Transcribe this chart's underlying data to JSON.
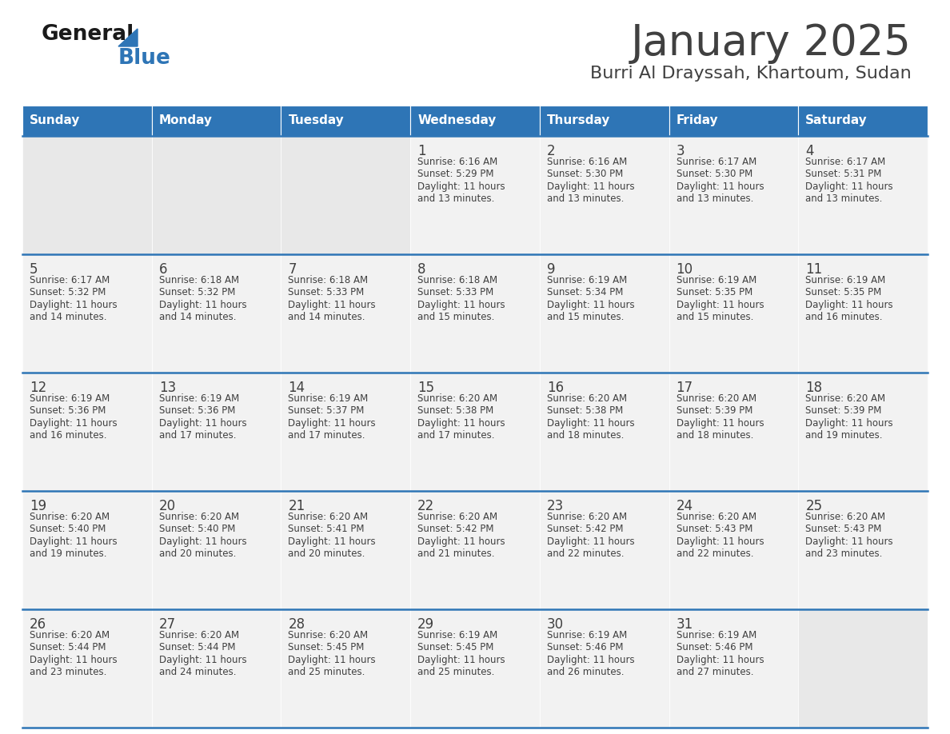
{
  "title": "January 2025",
  "subtitle": "Burri Al Drayssah, Khartoum, Sudan",
  "header_bg": "#2e75b6",
  "header_text_color": "#ffffff",
  "cell_bg": "#f2f2f2",
  "empty_cell_bg": "#e8e8e8",
  "separator_color": "#2e75b6",
  "text_color": "#404040",
  "days_of_week": [
    "Sunday",
    "Monday",
    "Tuesday",
    "Wednesday",
    "Thursday",
    "Friday",
    "Saturday"
  ],
  "calendar_data": [
    [
      {
        "day": "",
        "sunrise": "",
        "sunset": "",
        "daylight": ""
      },
      {
        "day": "",
        "sunrise": "",
        "sunset": "",
        "daylight": ""
      },
      {
        "day": "",
        "sunrise": "",
        "sunset": "",
        "daylight": ""
      },
      {
        "day": "1",
        "sunrise": "Sunrise: 6:16 AM",
        "sunset": "Sunset: 5:29 PM",
        "daylight": "Daylight: 11 hours\nand 13 minutes."
      },
      {
        "day": "2",
        "sunrise": "Sunrise: 6:16 AM",
        "sunset": "Sunset: 5:30 PM",
        "daylight": "Daylight: 11 hours\nand 13 minutes."
      },
      {
        "day": "3",
        "sunrise": "Sunrise: 6:17 AM",
        "sunset": "Sunset: 5:30 PM",
        "daylight": "Daylight: 11 hours\nand 13 minutes."
      },
      {
        "day": "4",
        "sunrise": "Sunrise: 6:17 AM",
        "sunset": "Sunset: 5:31 PM",
        "daylight": "Daylight: 11 hours\nand 13 minutes."
      }
    ],
    [
      {
        "day": "5",
        "sunrise": "Sunrise: 6:17 AM",
        "sunset": "Sunset: 5:32 PM",
        "daylight": "Daylight: 11 hours\nand 14 minutes."
      },
      {
        "day": "6",
        "sunrise": "Sunrise: 6:18 AM",
        "sunset": "Sunset: 5:32 PM",
        "daylight": "Daylight: 11 hours\nand 14 minutes."
      },
      {
        "day": "7",
        "sunrise": "Sunrise: 6:18 AM",
        "sunset": "Sunset: 5:33 PM",
        "daylight": "Daylight: 11 hours\nand 14 minutes."
      },
      {
        "day": "8",
        "sunrise": "Sunrise: 6:18 AM",
        "sunset": "Sunset: 5:33 PM",
        "daylight": "Daylight: 11 hours\nand 15 minutes."
      },
      {
        "day": "9",
        "sunrise": "Sunrise: 6:19 AM",
        "sunset": "Sunset: 5:34 PM",
        "daylight": "Daylight: 11 hours\nand 15 minutes."
      },
      {
        "day": "10",
        "sunrise": "Sunrise: 6:19 AM",
        "sunset": "Sunset: 5:35 PM",
        "daylight": "Daylight: 11 hours\nand 15 minutes."
      },
      {
        "day": "11",
        "sunrise": "Sunrise: 6:19 AM",
        "sunset": "Sunset: 5:35 PM",
        "daylight": "Daylight: 11 hours\nand 16 minutes."
      }
    ],
    [
      {
        "day": "12",
        "sunrise": "Sunrise: 6:19 AM",
        "sunset": "Sunset: 5:36 PM",
        "daylight": "Daylight: 11 hours\nand 16 minutes."
      },
      {
        "day": "13",
        "sunrise": "Sunrise: 6:19 AM",
        "sunset": "Sunset: 5:36 PM",
        "daylight": "Daylight: 11 hours\nand 17 minutes."
      },
      {
        "day": "14",
        "sunrise": "Sunrise: 6:19 AM",
        "sunset": "Sunset: 5:37 PM",
        "daylight": "Daylight: 11 hours\nand 17 minutes."
      },
      {
        "day": "15",
        "sunrise": "Sunrise: 6:20 AM",
        "sunset": "Sunset: 5:38 PM",
        "daylight": "Daylight: 11 hours\nand 17 minutes."
      },
      {
        "day": "16",
        "sunrise": "Sunrise: 6:20 AM",
        "sunset": "Sunset: 5:38 PM",
        "daylight": "Daylight: 11 hours\nand 18 minutes."
      },
      {
        "day": "17",
        "sunrise": "Sunrise: 6:20 AM",
        "sunset": "Sunset: 5:39 PM",
        "daylight": "Daylight: 11 hours\nand 18 minutes."
      },
      {
        "day": "18",
        "sunrise": "Sunrise: 6:20 AM",
        "sunset": "Sunset: 5:39 PM",
        "daylight": "Daylight: 11 hours\nand 19 minutes."
      }
    ],
    [
      {
        "day": "19",
        "sunrise": "Sunrise: 6:20 AM",
        "sunset": "Sunset: 5:40 PM",
        "daylight": "Daylight: 11 hours\nand 19 minutes."
      },
      {
        "day": "20",
        "sunrise": "Sunrise: 6:20 AM",
        "sunset": "Sunset: 5:40 PM",
        "daylight": "Daylight: 11 hours\nand 20 minutes."
      },
      {
        "day": "21",
        "sunrise": "Sunrise: 6:20 AM",
        "sunset": "Sunset: 5:41 PM",
        "daylight": "Daylight: 11 hours\nand 20 minutes."
      },
      {
        "day": "22",
        "sunrise": "Sunrise: 6:20 AM",
        "sunset": "Sunset: 5:42 PM",
        "daylight": "Daylight: 11 hours\nand 21 minutes."
      },
      {
        "day": "23",
        "sunrise": "Sunrise: 6:20 AM",
        "sunset": "Sunset: 5:42 PM",
        "daylight": "Daylight: 11 hours\nand 22 minutes."
      },
      {
        "day": "24",
        "sunrise": "Sunrise: 6:20 AM",
        "sunset": "Sunset: 5:43 PM",
        "daylight": "Daylight: 11 hours\nand 22 minutes."
      },
      {
        "day": "25",
        "sunrise": "Sunrise: 6:20 AM",
        "sunset": "Sunset: 5:43 PM",
        "daylight": "Daylight: 11 hours\nand 23 minutes."
      }
    ],
    [
      {
        "day": "26",
        "sunrise": "Sunrise: 6:20 AM",
        "sunset": "Sunset: 5:44 PM",
        "daylight": "Daylight: 11 hours\nand 23 minutes."
      },
      {
        "day": "27",
        "sunrise": "Sunrise: 6:20 AM",
        "sunset": "Sunset: 5:44 PM",
        "daylight": "Daylight: 11 hours\nand 24 minutes."
      },
      {
        "day": "28",
        "sunrise": "Sunrise: 6:20 AM",
        "sunset": "Sunset: 5:45 PM",
        "daylight": "Daylight: 11 hours\nand 25 minutes."
      },
      {
        "day": "29",
        "sunrise": "Sunrise: 6:19 AM",
        "sunset": "Sunset: 5:45 PM",
        "daylight": "Daylight: 11 hours\nand 25 minutes."
      },
      {
        "day": "30",
        "sunrise": "Sunrise: 6:19 AM",
        "sunset": "Sunset: 5:46 PM",
        "daylight": "Daylight: 11 hours\nand 26 minutes."
      },
      {
        "day": "31",
        "sunrise": "Sunrise: 6:19 AM",
        "sunset": "Sunset: 5:46 PM",
        "daylight": "Daylight: 11 hours\nand 27 minutes."
      },
      {
        "day": "",
        "sunrise": "",
        "sunset": "",
        "daylight": ""
      }
    ]
  ],
  "logo_general_color": "#1a1a1a",
  "logo_blue_color": "#2e75b6",
  "logo_triangle_color": "#2e75b6",
  "fig_width": 11.88,
  "fig_height": 9.18,
  "dpi": 100
}
